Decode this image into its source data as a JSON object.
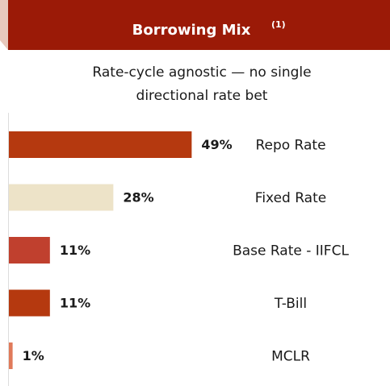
{
  "chart_data": {
    "type": "bar",
    "orientation": "horizontal",
    "title": "Borrowing Mix",
    "title_note": "(1)",
    "subtitle": [
      "Rate-cycle agnostic — no single",
      "directional rate bet"
    ],
    "categories": [
      "Repo Rate",
      "Fixed Rate",
      "Base Rate - IIFCL",
      "T-Bill",
      "MCLR"
    ],
    "values": [
      49,
      28,
      11,
      11,
      1
    ],
    "value_labels": [
      "49%",
      "28%",
      "11%",
      "11%",
      "1%"
    ],
    "colors": [
      "#b5390f",
      "#ede3c8",
      "#c0402e",
      "#b5390f",
      "#e07a5a"
    ]
  }
}
